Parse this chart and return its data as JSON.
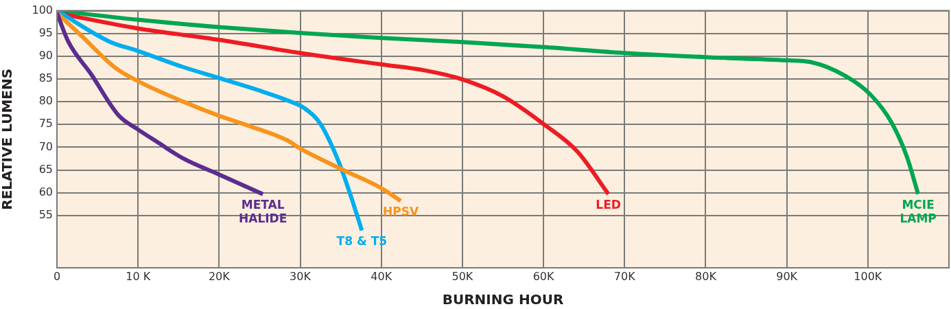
{
  "chart_data": {
    "type": "line",
    "xlabel": "BURNING HOUR",
    "ylabel": "RELATIVE LUMENS",
    "xlim": [
      0,
      110000
    ],
    "ylim": [
      43.5,
      100
    ],
    "xticks": [
      0,
      {
        "value": 10000,
        "label": "10 K"
      },
      {
        "value": 20000,
        "label": "20K"
      },
      {
        "value": 30000,
        "label": "30K"
      },
      {
        "value": 40000,
        "label": "40K"
      },
      {
        "value": 50000,
        "label": "50K"
      },
      {
        "value": 60000,
        "label": "60K"
      },
      {
        "value": 70000,
        "label": "70K"
      },
      {
        "value": 80000,
        "label": "80K"
      },
      {
        "value": 90000,
        "label": "90K"
      },
      {
        "value": 100000,
        "label": "100K"
      }
    ],
    "yticks": [
      55,
      60,
      65,
      70,
      75,
      80,
      85,
      90,
      95,
      100
    ],
    "grid": true,
    "legend": false,
    "marker": "none",
    "line_style": "solid",
    "series": [
      {
        "name": "METAL\nHALIDE",
        "color": "#5b2d8e",
        "x": [
          0,
          1400,
          4200,
          7600,
          9900,
          12500,
          15600,
          20000,
          25400
        ],
        "values": [
          99.5,
          93.2,
          86.1,
          77,
          74,
          71,
          67.5,
          64,
          59.7
        ]
      },
      {
        "name": "HPSV",
        "color": "#f7941d",
        "x": [
          0,
          2900,
          7100,
          9900,
          15600,
          20000,
          23500,
          28300,
          30200,
          35300,
          40000,
          42400
        ],
        "values": [
          99.5,
          94.7,
          87.6,
          84.6,
          80,
          76.9,
          74.8,
          71.6,
          69.5,
          65,
          61,
          58.2
        ]
      },
      {
        "name": "T8 & T5",
        "color": "#00aeef",
        "x": [
          0,
          6500,
          9900,
          15600,
          20000,
          25400,
          29400,
          30500,
          32500,
          34700,
          36200,
          37600
        ],
        "values": [
          100,
          93.2,
          91.2,
          87.6,
          85.2,
          82.2,
          79.6,
          78.6,
          75.1,
          67,
          59.5,
          51.7
        ]
      },
      {
        "name": "LED",
        "color": "#ed1c24",
        "x": [
          0,
          10000,
          20000,
          30000,
          40000,
          45300,
          50000,
          55100,
          60000,
          64200,
          68000
        ],
        "values": [
          99.5,
          96.1,
          93.6,
          90.7,
          88.2,
          86.9,
          84.9,
          81.1,
          75.1,
          69,
          59.7
        ]
      },
      {
        "name": "MCIE\nLAMP",
        "color": "#00a651",
        "x": [
          0,
          10000,
          20000,
          30000,
          40000,
          50000,
          60000,
          70000,
          80000,
          90000,
          93000,
          97200,
          100300,
          102900,
          104800,
          106200
        ],
        "values": [
          100,
          98,
          96.4,
          95.1,
          94,
          93.1,
          92,
          90.7,
          89.8,
          89.1,
          88.7,
          85.7,
          81.6,
          75.5,
          68,
          59.7
        ]
      }
    ]
  }
}
